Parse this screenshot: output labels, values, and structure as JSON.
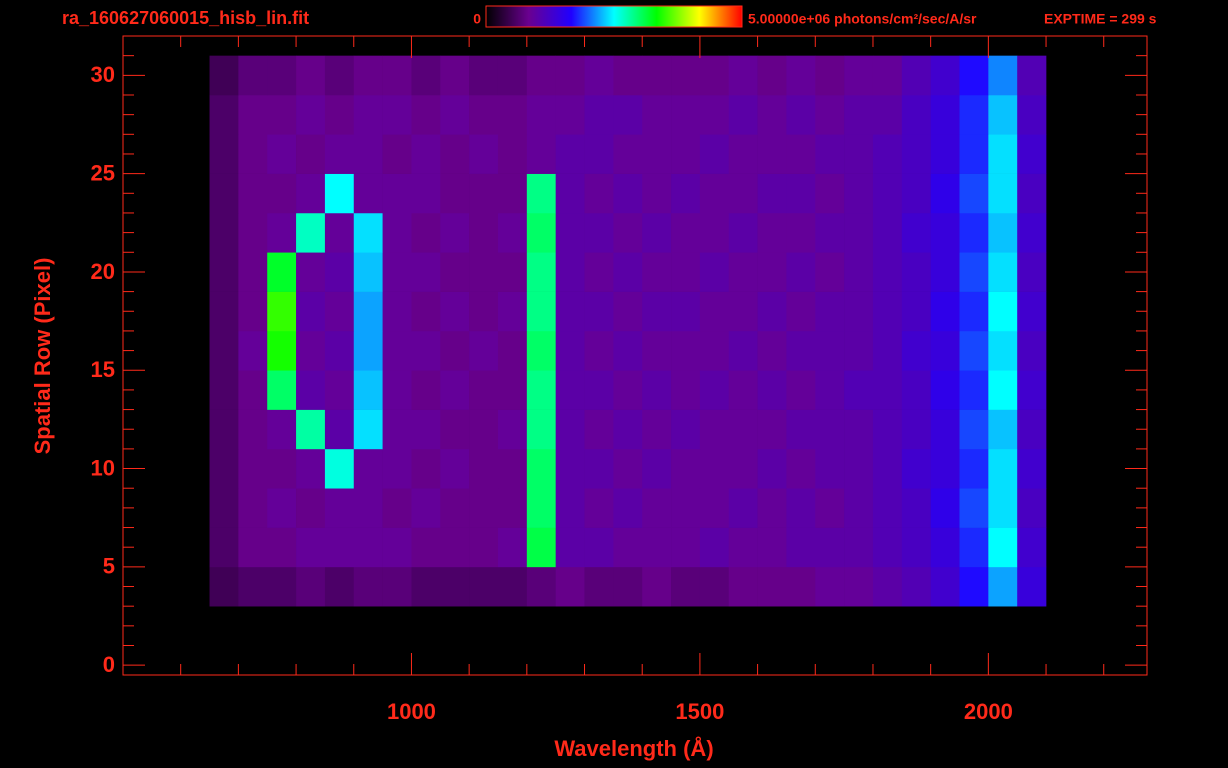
{
  "chart_data": {
    "type": "heatmap",
    "title": "ra_160627060015_hisb_lin.fit",
    "annotation": "EXPTIME = 299 s",
    "xlabel": "Wavelength (Å)",
    "ylabel": "Spatial Row (Pixel)",
    "xlim": [
      500,
      2275
    ],
    "ylim": [
      -0.5,
      32
    ],
    "xticks": [
      1000,
      1500,
      2000
    ],
    "xminorticks": [
      600,
      700,
      800,
      900,
      1100,
      1200,
      1300,
      1400,
      1600,
      1700,
      1800,
      1900,
      2100,
      2200
    ],
    "yticks": [
      0,
      5,
      10,
      15,
      20,
      25,
      30
    ],
    "yminorticks": [
      1,
      2,
      3,
      4,
      6,
      7,
      8,
      9,
      11,
      12,
      13,
      14,
      16,
      17,
      18,
      19,
      21,
      22,
      23,
      24,
      26,
      27,
      28,
      29,
      31
    ],
    "zlim": [
      0,
      5000000
    ],
    "zticks": [
      0,
      {
        "value": 5000000,
        "label": "5.00000e+06"
      }
    ],
    "zlabel": "photons/cm²/sec/A/sr",
    "colormap": [
      "#000000",
      "#6a0090",
      "#2000ff",
      "#00ffff",
      "#00ff00",
      "#ffff00",
      "#ff0000"
    ],
    "axis_color": "#ff2a1a",
    "x_edges": [
      650,
      700,
      750,
      800,
      850,
      900,
      950,
      1000,
      1050,
      1100,
      1150,
      1200,
      1250,
      1300,
      1350,
      1400,
      1450,
      1500,
      1550,
      1600,
      1650,
      1700,
      1750,
      1800,
      1850,
      1900,
      1950,
      2000,
      2050,
      2100
    ],
    "y_edges": [
      3,
      5,
      7,
      9,
      11,
      13,
      15,
      17,
      19,
      21,
      23,
      25,
      27,
      29,
      31
    ],
    "z": [
      [
        500000.0,
        600000.0,
        600000.0,
        700000.0,
        600000.0,
        700000.0,
        700000.0,
        600000.0,
        600000.0,
        600000.0,
        600000.0,
        700000.0,
        800000.0,
        700000.0,
        700000.0,
        800000.0,
        700000.0,
        700000.0,
        800000.0,
        800000.0,
        800000.0,
        900000.0,
        900000.0,
        1000000.0,
        1100000.0,
        1300000.0,
        1700000.0,
        2200000.0,
        1400000.0
      ],
      [
        600000.0,
        800000.0,
        800000.0,
        900000.0,
        900000.0,
        900000.0,
        900000.0,
        800000.0,
        800000.0,
        800000.0,
        900000.0,
        3100000.0,
        1000000.0,
        1000000.0,
        900000.0,
        900000.0,
        900000.0,
        1000000.0,
        900000.0,
        900000.0,
        1000000.0,
        1000000.0,
        1000000.0,
        1100000.0,
        1200000.0,
        1400000.0,
        1800000.0,
        2500000.0,
        1300000.0
      ],
      [
        600000.0,
        800000.0,
        900000.0,
        800000.0,
        900000.0,
        900000.0,
        800000.0,
        900000.0,
        800000.0,
        800000.0,
        800000.0,
        3000000.0,
        1000000.0,
        900000.0,
        1000000.0,
        900000.0,
        900000.0,
        900000.0,
        1000000.0,
        900000.0,
        1000000.0,
        900000.0,
        1000000.0,
        1100000.0,
        1200000.0,
        1500000.0,
        1900000.0,
        2400000.0,
        1200000.0
      ],
      [
        600000.0,
        800000.0,
        800000.0,
        900000.0,
        2600000.0,
        900000.0,
        900000.0,
        800000.0,
        900000.0,
        800000.0,
        800000.0,
        3000000.0,
        1000000.0,
        1000000.0,
        900000.0,
        1000000.0,
        900000.0,
        900000.0,
        900000.0,
        1000000.0,
        900000.0,
        1000000.0,
        1000000.0,
        1100000.0,
        1300000.0,
        1400000.0,
        1800000.0,
        2400000.0,
        1300000.0
      ],
      [
        600000.0,
        800000.0,
        900000.0,
        2800000.0,
        1000000.0,
        2400000.0,
        900000.0,
        900000.0,
        800000.0,
        800000.0,
        900000.0,
        2900000.0,
        1000000.0,
        900000.0,
        1000000.0,
        900000.0,
        1000000.0,
        900000.0,
        900000.0,
        900000.0,
        1000000.0,
        1000000.0,
        1000000.0,
        1100000.0,
        1200000.0,
        1400000.0,
        1900000.0,
        2300000.0,
        1200000.0
      ],
      [
        600000.0,
        800000.0,
        3000000.0,
        1000000.0,
        900000.0,
        2300000.0,
        900000.0,
        800000.0,
        900000.0,
        800000.0,
        800000.0,
        2900000.0,
        1000000.0,
        1000000.0,
        900000.0,
        1000000.0,
        900000.0,
        1000000.0,
        900000.0,
        1000000.0,
        900000.0,
        1000000.0,
        1100000.0,
        1100000.0,
        1200000.0,
        1500000.0,
        1800000.0,
        2500000.0,
        1300000.0
      ],
      [
        600000.0,
        900000.0,
        3400000.0,
        900000.0,
        1000000.0,
        2200000.0,
        900000.0,
        900000.0,
        800000.0,
        900000.0,
        800000.0,
        3000000.0,
        1000000.0,
        900000.0,
        1000000.0,
        900000.0,
        900000.0,
        900000.0,
        1000000.0,
        900000.0,
        1000000.0,
        1000000.0,
        1000000.0,
        1100000.0,
        1300000.0,
        1400000.0,
        1900000.0,
        2400000.0,
        1200000.0
      ],
      [
        600000.0,
        800000.0,
        3500000.0,
        1000000.0,
        900000.0,
        2200000.0,
        900000.0,
        800000.0,
        900000.0,
        800000.0,
        900000.0,
        2900000.0,
        1000000.0,
        1000000.0,
        900000.0,
        1000000.0,
        1000000.0,
        900000.0,
        900000.0,
        1000000.0,
        900000.0,
        1000000.0,
        1000000.0,
        1100000.0,
        1200000.0,
        1500000.0,
        1800000.0,
        2500000.0,
        1300000.0
      ],
      [
        600000.0,
        800000.0,
        3200000.0,
        900000.0,
        1000000.0,
        2300000.0,
        900000.0,
        900000.0,
        800000.0,
        800000.0,
        800000.0,
        2900000.0,
        1000000.0,
        900000.0,
        1000000.0,
        900000.0,
        900000.0,
        1000000.0,
        900000.0,
        900000.0,
        1000000.0,
        900000.0,
        1000000.0,
        1100000.0,
        1200000.0,
        1400000.0,
        1900000.0,
        2400000.0,
        1200000.0
      ],
      [
        600000.0,
        800000.0,
        900000.0,
        2700000.0,
        900000.0,
        2400000.0,
        900000.0,
        800000.0,
        900000.0,
        800000.0,
        900000.0,
        3000000.0,
        1000000.0,
        1000000.0,
        900000.0,
        1000000.0,
        900000.0,
        900000.0,
        1000000.0,
        900000.0,
        900000.0,
        1000000.0,
        1000000.0,
        1100000.0,
        1300000.0,
        1400000.0,
        1800000.0,
        2300000.0,
        1300000.0
      ],
      [
        600000.0,
        800000.0,
        800000.0,
        900000.0,
        2500000.0,
        900000.0,
        900000.0,
        900000.0,
        800000.0,
        800000.0,
        800000.0,
        2900000.0,
        1000000.0,
        900000.0,
        1000000.0,
        900000.0,
        1000000.0,
        900000.0,
        900000.0,
        1000000.0,
        1000000.0,
        900000.0,
        1000000.0,
        1100000.0,
        1200000.0,
        1500000.0,
        1900000.0,
        2400000.0,
        1200000.0
      ],
      [
        600000.0,
        800000.0,
        900000.0,
        800000.0,
        900000.0,
        900000.0,
        800000.0,
        900000.0,
        800000.0,
        900000.0,
        800000.0,
        900000.0,
        1000000.0,
        1000000.0,
        900000.0,
        900000.0,
        900000.0,
        1000000.0,
        900000.0,
        900000.0,
        900000.0,
        1000000.0,
        1000000.0,
        1100000.0,
        1200000.0,
        1400000.0,
        1800000.0,
        2400000.0,
        1300000.0
      ],
      [
        600000.0,
        800000.0,
        800000.0,
        900000.0,
        800000.0,
        900000.0,
        900000.0,
        800000.0,
        900000.0,
        800000.0,
        800000.0,
        900000.0,
        900000.0,
        1000000.0,
        1000000.0,
        900000.0,
        900000.0,
        900000.0,
        1000000.0,
        900000.0,
        1000000.0,
        900000.0,
        1000000.0,
        1000000.0,
        1200000.0,
        1400000.0,
        1800000.0,
        2300000.0,
        1200000.0
      ],
      [
        500000.0,
        700000.0,
        700000.0,
        800000.0,
        700000.0,
        800000.0,
        800000.0,
        700000.0,
        800000.0,
        700000.0,
        700000.0,
        800000.0,
        800000.0,
        900000.0,
        800000.0,
        800000.0,
        800000.0,
        800000.0,
        900000.0,
        800000.0,
        900000.0,
        800000.0,
        900000.0,
        900000.0,
        1100000.0,
        1300000.0,
        1700000.0,
        2100000.0,
        1100000.0
      ]
    ]
  }
}
